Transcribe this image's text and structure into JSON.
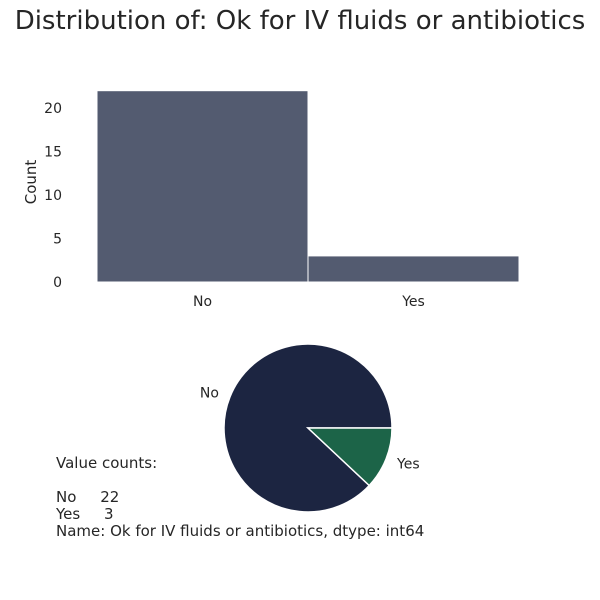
{
  "title": "Distribution of: Ok for IV fluids or antibiotics",
  "colors": {
    "bar": "#535b70",
    "pie_no": "#1c2541",
    "pie_yes": "#1c6448",
    "text": "#262626"
  },
  "chart_data": [
    {
      "type": "bar",
      "categories": [
        "No",
        "Yes"
      ],
      "values": [
        22,
        3
      ],
      "title": "",
      "xlabel": "",
      "ylabel": "Count",
      "ylim": [
        0,
        23
      ],
      "yticks": [
        "0",
        "5",
        "10",
        "15",
        "20"
      ],
      "grid": false
    },
    {
      "type": "pie",
      "labels": [
        "No",
        "Yes"
      ],
      "values": [
        22,
        3
      ]
    }
  ],
  "value_counts": {
    "heading": "Value counts:",
    "rows": [
      "No     22",
      "Yes     3"
    ],
    "footer": "Name: Ok for IV fluids or antibiotics, dtype: int64"
  }
}
